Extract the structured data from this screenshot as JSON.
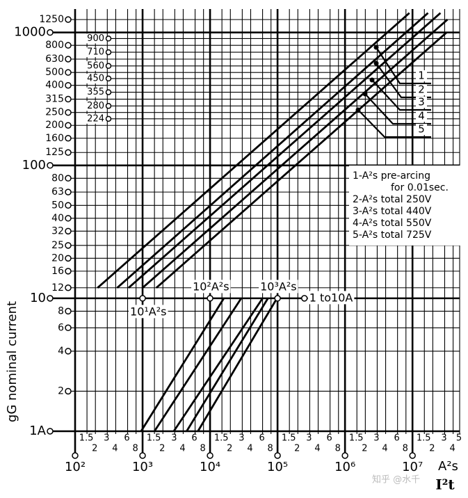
{
  "chart_data": {
    "type": "line",
    "log_x": true,
    "log_y": true,
    "grid": true,
    "color": "#000000",
    "y_label": "gG nominal current",
    "x_label": "A²s",
    "x_label2": "I²t",
    "xlim": [
      100,
      50000000
    ],
    "ylim": [
      1,
      1500
    ],
    "yticks": [
      {
        "value": 1250,
        "label": "1250"
      },
      1000,
      800,
      630,
      500,
      400,
      315,
      250,
      200,
      160,
      125,
      100,
      80,
      63,
      50,
      40,
      32,
      25,
      20,
      16,
      12,
      10,
      8,
      6,
      4,
      2,
      {
        "value": 1,
        "label": "1A"
      }
    ],
    "yticks_inner": [
      900,
      710,
      560,
      450,
      355,
      280,
      224
    ],
    "xticks": [
      {
        "value": 100,
        "label": "10²"
      },
      {
        "value": 150,
        "label": "1.5"
      },
      {
        "value": 200,
        "label": "2"
      },
      {
        "value": 300,
        "label": "3"
      },
      {
        "value": 400,
        "label": "4"
      },
      {
        "value": 600,
        "label": "6"
      },
      {
        "value": 800,
        "label": "8"
      },
      {
        "value": 1000,
        "label": "10³"
      },
      {
        "value": 1500,
        "label": "1.5"
      },
      {
        "value": 2000,
        "label": "2"
      },
      {
        "value": 3000,
        "label": "3"
      },
      {
        "value": 4000,
        "label": "4"
      },
      {
        "value": 6000,
        "label": "6"
      },
      {
        "value": 8000,
        "label": "8"
      },
      {
        "value": 10000,
        "label": "10⁴"
      },
      {
        "value": 15000,
        "label": "1.5"
      },
      {
        "value": 20000,
        "label": "2"
      },
      {
        "value": 30000,
        "label": "3"
      },
      {
        "value": 40000,
        "label": "4"
      },
      {
        "value": 60000,
        "label": "6"
      },
      {
        "value": 80000,
        "label": "8"
      },
      {
        "value": 100000,
        "label": "10⁵"
      },
      {
        "value": 150000,
        "label": "1.5"
      },
      {
        "value": 200000,
        "label": "2"
      },
      {
        "value": 300000,
        "label": "3"
      },
      {
        "value": 400000,
        "label": "4"
      },
      {
        "value": 600000,
        "label": "6"
      },
      {
        "value": 800000,
        "label": "8"
      },
      {
        "value": 1000000,
        "label": "10⁶"
      },
      {
        "value": 1500000,
        "label": "1.5"
      },
      {
        "value": 2000000,
        "label": "2"
      },
      {
        "value": 3000000,
        "label": "3"
      },
      {
        "value": 4000000,
        "label": "4"
      },
      {
        "value": 6000000,
        "label": "6"
      },
      {
        "value": 8000000,
        "label": "8"
      },
      {
        "value": 10000000,
        "label": "10⁷"
      },
      {
        "value": 15000000,
        "label": "1.5"
      },
      {
        "value": 20000000,
        "label": "2"
      },
      {
        "value": 30000000,
        "label": "3"
      },
      {
        "value": 40000000,
        "label": "4"
      },
      {
        "value": 50000000,
        "label": "5"
      }
    ],
    "series": [
      {
        "name": "1",
        "x": [
          215,
          9000000
        ],
        "values": [
          12,
          1400
        ]
      },
      {
        "name": "2",
        "x": [
          420,
          17000000
        ],
        "values": [
          12,
          1400
        ]
      },
      {
        "name": "3",
        "x": [
          620,
          26000000
        ],
        "values": [
          12,
          1400
        ]
      },
      {
        "name": "4",
        "x": [
          1000,
          33000000
        ],
        "values": [
          12,
          1250
        ]
      },
      {
        "name": "5",
        "x": [
          1600,
          32000000
        ],
        "values": [
          12,
          1000
        ]
      },
      {
        "x": [
          950,
          16000
        ],
        "values": [
          1,
          10
        ]
      },
      {
        "x": [
          1500,
          29000
        ],
        "values": [
          1,
          10
        ]
      },
      {
        "x": [
          2900,
          60000
        ],
        "values": [
          1,
          10
        ]
      },
      {
        "x": [
          4500,
          72000
        ],
        "values": [
          1,
          10
        ]
      },
      {
        "x": [
          6600,
          98000
        ],
        "values": [
          1,
          10
        ]
      }
    ],
    "annotations": [
      {
        "text": "10¹A²s",
        "x": 1000,
        "y": 10
      },
      {
        "text": "10²A²s",
        "x": 10000,
        "y": 10
      },
      {
        "text": "10³A²s",
        "x": 100000,
        "y": 10
      },
      {
        "text": "1 to10A",
        "x": 250000,
        "y": 10
      }
    ],
    "legend_notes": [
      "1-A²s  pre-arcing",
      "for  0.01sec.",
      "2-A²s  total 250V",
      "3-A²s  total 440V",
      "4-A²s  total 550V",
      "5-A²s  total 725V"
    ],
    "watermark": "知乎 @水千"
  }
}
